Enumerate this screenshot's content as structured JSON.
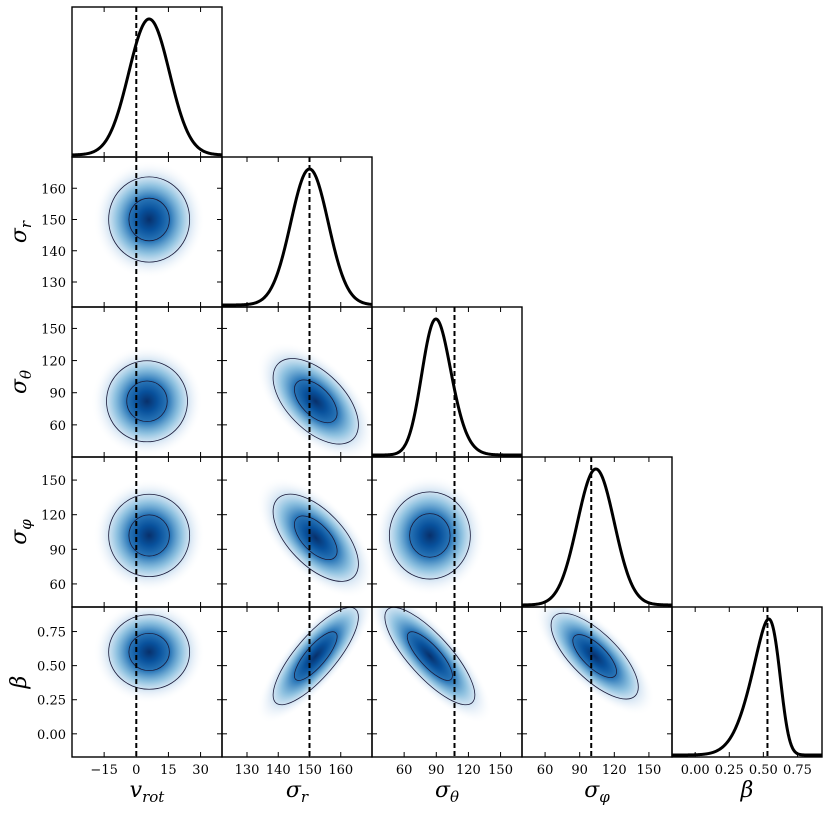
{
  "chart_data": {
    "type": "corner",
    "parameters": [
      {
        "key": "vrot",
        "label_base": "v",
        "label_sub": "rot",
        "range": [
          -30,
          40
        ],
        "ticks": [
          -15,
          0,
          15,
          30
        ],
        "tick_labels": [
          "−15",
          "0",
          "15",
          "30"
        ],
        "truth": 0,
        "marginal": {
          "mean": 6,
          "sd": 9.5
        }
      },
      {
        "key": "sr",
        "label_base": "σ",
        "label_sub": "r",
        "range": [
          122,
          170
        ],
        "ticks": [
          130,
          140,
          150,
          160
        ],
        "tick_labels": [
          "130",
          "140",
          "150",
          "160"
        ],
        "truth": 150,
        "marginal": {
          "mean": 150,
          "sd": 6
        }
      },
      {
        "key": "stheta",
        "label_base": "σ",
        "label_sub": "θ",
        "range": [
          30,
          170
        ],
        "ticks": [
          60,
          90,
          120,
          150
        ],
        "tick_labels": [
          "60",
          "90",
          "120",
          "150"
        ],
        "truth": 107,
        "marginal": {
          "mean": 80,
          "sd": 18,
          "skew": 1.3
        }
      },
      {
        "key": "sphi",
        "label_base": "σ",
        "label_sub": "φ",
        "range": [
          40,
          170
        ],
        "ticks": [
          60,
          90,
          120,
          150
        ],
        "tick_labels": [
          "60",
          "90",
          "120",
          "150"
        ],
        "truth": 100,
        "marginal": {
          "mean": 104,
          "sd": 16
        }
      },
      {
        "key": "beta",
        "label_base": "β",
        "label_sub": "",
        "range": [
          -0.17,
          0.93
        ],
        "ticks": [
          0.0,
          0.25,
          0.5,
          0.75
        ],
        "tick_labels": [
          "0.00",
          "0.25",
          "0.50",
          "0.75"
        ],
        "truth": 0.53,
        "marginal": {
          "mean": 0.62,
          "sd": 0.17,
          "skew": -3.0
        }
      }
    ],
    "pairs": [
      {
        "x": "vrot",
        "y": "sr",
        "mx": 6,
        "my": 150,
        "sx": 9,
        "sy": 6.5,
        "rho": 0.0
      },
      {
        "x": "vrot",
        "y": "stheta",
        "mx": 5,
        "my": 82,
        "sx": 9,
        "sy": 18,
        "rho": 0.0
      },
      {
        "x": "sr",
        "y": "stheta",
        "mx": 152,
        "my": 82,
        "sx": 6.5,
        "sy": 19,
        "rho": -0.55
      },
      {
        "x": "vrot",
        "y": "sphi",
        "mx": 6,
        "my": 102,
        "sx": 9,
        "sy": 17,
        "rho": 0.0
      },
      {
        "x": "sr",
        "y": "sphi",
        "mx": 152,
        "my": 100,
        "sx": 6.5,
        "sy": 18,
        "rho": -0.6
      },
      {
        "x": "stheta",
        "y": "sphi",
        "mx": 84,
        "my": 102,
        "sx": 18,
        "sy": 18,
        "rho": 0.0
      },
      {
        "x": "vrot",
        "y": "beta",
        "mx": 6,
        "my": 0.6,
        "sx": 9,
        "sy": 0.13,
        "rho": 0.0
      },
      {
        "x": "sr",
        "y": "beta",
        "mx": 152,
        "my": 0.57,
        "sx": 6.5,
        "sy": 0.17,
        "rho": 0.8
      },
      {
        "x": "stheta",
        "y": "beta",
        "mx": 84,
        "my": 0.57,
        "sx": 20,
        "sy": 0.17,
        "rho": -0.8
      },
      {
        "x": "sphi",
        "y": "beta",
        "mx": 103,
        "my": 0.57,
        "sx": 18,
        "sy": 0.15,
        "rho": -0.72
      }
    ],
    "contour_levels_sigma": [
      1,
      2
    ],
    "colors": {
      "density": "#08306b",
      "density_mid": "#4292c6",
      "contour": "#1a1a3a",
      "line": "#000000"
    }
  }
}
